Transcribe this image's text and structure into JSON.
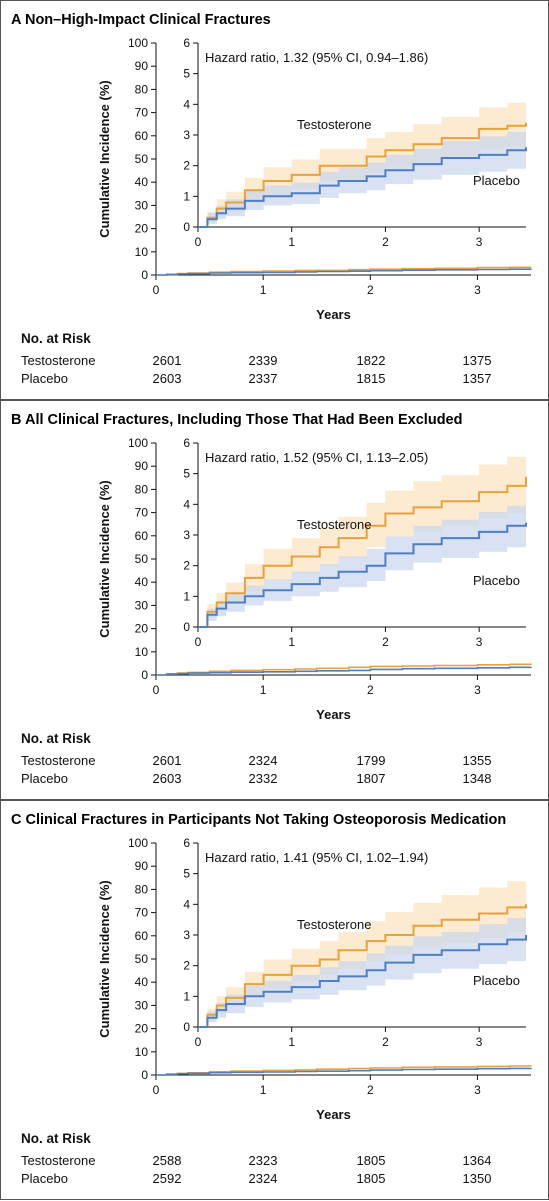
{
  "colors": {
    "testosterone": "#e8a23a",
    "placebo": "#4f7ec2",
    "testosterone_band": "#fbe3c1",
    "placebo_band": "#c8d6ee"
  },
  "risk_header": "No. at Risk",
  "chart_data": [
    {
      "type": "line",
      "panel": "A",
      "title": "Non–High-Impact Clinical Fractures",
      "ylabel": "Cumulative Incidence (%)",
      "xlabel": "Years",
      "outer_ylim": [
        0,
        100
      ],
      "outer_yticks": [
        0,
        10,
        20,
        30,
        40,
        50,
        60,
        70,
        80,
        90,
        100
      ],
      "inset_ylim": [
        0,
        6
      ],
      "inset_yticks": [
        0,
        1,
        2,
        3,
        4,
        5,
        6
      ],
      "xlim": [
        0,
        3.5
      ],
      "xticks": [
        0,
        1,
        2,
        3
      ],
      "annotation": "Hazard ratio, 1.32 (95% CI, 0.94–1.86)",
      "series": [
        {
          "name": "Testosterone",
          "x": [
            0,
            0.1,
            0.2,
            0.3,
            0.5,
            0.7,
            1.0,
            1.3,
            1.5,
            1.8,
            2.0,
            2.3,
            2.6,
            3.0,
            3.3,
            3.5
          ],
          "values": [
            0,
            0.3,
            0.6,
            0.8,
            1.2,
            1.5,
            1.7,
            2.0,
            2.0,
            2.3,
            2.5,
            2.7,
            2.9,
            3.2,
            3.3,
            3.4
          ],
          "ci_low": [
            0,
            0.15,
            0.35,
            0.5,
            0.8,
            1.05,
            1.25,
            1.5,
            1.55,
            1.75,
            1.95,
            2.1,
            2.3,
            2.55,
            2.6,
            2.7
          ],
          "ci_high": [
            0,
            0.5,
            0.9,
            1.15,
            1.6,
            1.95,
            2.2,
            2.55,
            2.55,
            2.9,
            3.1,
            3.35,
            3.6,
            3.9,
            4.05,
            4.2
          ]
        },
        {
          "name": "Placebo",
          "x": [
            0,
            0.1,
            0.2,
            0.3,
            0.5,
            0.7,
            1.0,
            1.3,
            1.5,
            1.8,
            2.0,
            2.3,
            2.6,
            3.0,
            3.3,
            3.5
          ],
          "values": [
            0,
            0.25,
            0.45,
            0.6,
            0.85,
            1.0,
            1.1,
            1.35,
            1.5,
            1.65,
            1.85,
            2.05,
            2.25,
            2.35,
            2.5,
            2.6
          ],
          "ci_low": [
            0,
            0.1,
            0.25,
            0.35,
            0.55,
            0.7,
            0.75,
            0.95,
            1.1,
            1.2,
            1.4,
            1.55,
            1.7,
            1.8,
            1.9,
            2.0
          ],
          "ci_high": [
            0,
            0.45,
            0.7,
            0.9,
            1.2,
            1.35,
            1.45,
            1.8,
            1.95,
            2.1,
            2.35,
            2.55,
            2.8,
            2.95,
            3.1,
            3.2
          ]
        }
      ],
      "risk": {
        "labels": [
          "Testosterone",
          "Placebo"
        ],
        "rows": [
          [
            "2601",
            "2339",
            "1822",
            "1375"
          ],
          [
            "2603",
            "2337",
            "1815",
            "1357"
          ]
        ]
      }
    },
    {
      "type": "line",
      "panel": "B",
      "title": "All Clinical Fractures, Including Those That Had Been Excluded",
      "ylabel": "Cumulative Incidence (%)",
      "xlabel": "Years",
      "outer_ylim": [
        0,
        100
      ],
      "outer_yticks": [
        0,
        10,
        20,
        30,
        40,
        50,
        60,
        70,
        80,
        90,
        100
      ],
      "inset_ylim": [
        0,
        6
      ],
      "inset_yticks": [
        0,
        1,
        2,
        3,
        4,
        5,
        6
      ],
      "xlim": [
        0,
        3.5
      ],
      "xticks": [
        0,
        1,
        2,
        3
      ],
      "annotation": "Hazard ratio, 1.52 (95% CI, 1.13–2.05)",
      "series": [
        {
          "name": "Testosterone",
          "x": [
            0,
            0.1,
            0.2,
            0.3,
            0.5,
            0.7,
            1.0,
            1.3,
            1.5,
            1.8,
            2.0,
            2.3,
            2.6,
            3.0,
            3.3,
            3.5
          ],
          "values": [
            0,
            0.5,
            0.8,
            1.1,
            1.6,
            2.0,
            2.3,
            2.6,
            2.9,
            3.3,
            3.7,
            3.9,
            4.1,
            4.4,
            4.6,
            4.9
          ],
          "ci_low": [
            0,
            0.3,
            0.55,
            0.75,
            1.15,
            1.5,
            1.75,
            2.0,
            2.25,
            2.6,
            2.95,
            3.1,
            3.3,
            3.55,
            3.7,
            3.95
          ],
          "ci_high": [
            0,
            0.75,
            1.1,
            1.45,
            2.05,
            2.55,
            2.9,
            3.25,
            3.6,
            4.05,
            4.45,
            4.75,
            4.95,
            5.3,
            5.55,
            5.9
          ]
        },
        {
          "name": "Placebo",
          "x": [
            0,
            0.1,
            0.2,
            0.3,
            0.5,
            0.7,
            1.0,
            1.3,
            1.5,
            1.8,
            2.0,
            2.3,
            2.6,
            3.0,
            3.3,
            3.5
          ],
          "values": [
            0,
            0.4,
            0.6,
            0.8,
            1.0,
            1.2,
            1.4,
            1.6,
            1.8,
            2.0,
            2.4,
            2.7,
            2.9,
            3.1,
            3.3,
            3.4
          ],
          "ci_low": [
            0,
            0.2,
            0.35,
            0.5,
            0.7,
            0.85,
            1.0,
            1.15,
            1.3,
            1.5,
            1.85,
            2.1,
            2.25,
            2.45,
            2.6,
            2.7
          ],
          "ci_high": [
            0,
            0.6,
            0.85,
            1.1,
            1.35,
            1.55,
            1.8,
            2.05,
            2.3,
            2.55,
            2.95,
            3.3,
            3.5,
            3.75,
            3.95,
            4.1
          ]
        }
      ],
      "risk": {
        "labels": [
          "Testosterone",
          "Placebo"
        ],
        "rows": [
          [
            "2601",
            "2324",
            "1799",
            "1355"
          ],
          [
            "2603",
            "2332",
            "1807",
            "1348"
          ]
        ]
      }
    },
    {
      "type": "line",
      "panel": "C",
      "title": "Clinical Fractures in Participants Not Taking Osteoporosis Medication",
      "ylabel": "Cumulative Incidence (%)",
      "xlabel": "Years",
      "outer_ylim": [
        0,
        100
      ],
      "outer_yticks": [
        0,
        10,
        20,
        30,
        40,
        50,
        60,
        70,
        80,
        90,
        100
      ],
      "inset_ylim": [
        0,
        6
      ],
      "inset_yticks": [
        0,
        1,
        2,
        3,
        4,
        5,
        6
      ],
      "xlim": [
        0,
        3.5
      ],
      "xticks": [
        0,
        1,
        2,
        3
      ],
      "annotation": "Hazard ratio, 1.41 (95% CI, 1.02–1.94)",
      "series": [
        {
          "name": "Testosterone",
          "x": [
            0,
            0.1,
            0.2,
            0.3,
            0.5,
            0.7,
            1.0,
            1.3,
            1.5,
            1.8,
            2.0,
            2.3,
            2.6,
            3.0,
            3.3,
            3.5
          ],
          "values": [
            0,
            0.4,
            0.7,
            0.95,
            1.4,
            1.7,
            2.0,
            2.2,
            2.5,
            2.8,
            3.0,
            3.3,
            3.5,
            3.7,
            3.9,
            4.0
          ],
          "ci_low": [
            0,
            0.2,
            0.45,
            0.65,
            1.0,
            1.25,
            1.5,
            1.7,
            1.9,
            2.15,
            2.35,
            2.6,
            2.75,
            2.9,
            3.1,
            3.2
          ],
          "ci_high": [
            0,
            0.6,
            1.0,
            1.3,
            1.8,
            2.2,
            2.55,
            2.8,
            3.1,
            3.45,
            3.75,
            4.05,
            4.3,
            4.55,
            4.75,
            4.9
          ]
        },
        {
          "name": "Placebo",
          "x": [
            0,
            0.1,
            0.2,
            0.3,
            0.5,
            0.7,
            1.0,
            1.3,
            1.5,
            1.8,
            2.0,
            2.3,
            2.6,
            3.0,
            3.3,
            3.5
          ],
          "values": [
            0,
            0.3,
            0.55,
            0.75,
            1.0,
            1.15,
            1.3,
            1.5,
            1.65,
            1.85,
            2.1,
            2.35,
            2.5,
            2.7,
            2.85,
            3.0
          ],
          "ci_low": [
            0,
            0.15,
            0.3,
            0.45,
            0.65,
            0.8,
            0.9,
            1.05,
            1.2,
            1.35,
            1.55,
            1.75,
            1.9,
            2.05,
            2.15,
            2.3
          ],
          "ci_high": [
            0,
            0.5,
            0.8,
            1.05,
            1.35,
            1.5,
            1.7,
            1.95,
            2.15,
            2.4,
            2.65,
            2.95,
            3.1,
            3.35,
            3.55,
            3.7
          ]
        }
      ],
      "risk": {
        "labels": [
          "Testosterone",
          "Placebo"
        ],
        "rows": [
          [
            "2588",
            "2323",
            "1805",
            "1364"
          ],
          [
            "2592",
            "2324",
            "1805",
            "1350"
          ]
        ]
      }
    }
  ]
}
